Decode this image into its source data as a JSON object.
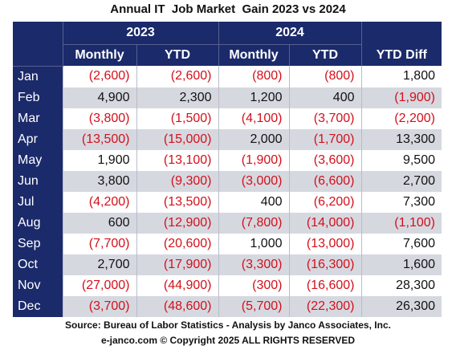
{
  "header": {
    "title": "Annual IT  Job Market  Gain 2023 vs 2024"
  },
  "table": {
    "groups": [
      "2023",
      "2024"
    ],
    "columns": [
      "Monthly",
      "YTD",
      "Monthly",
      "YTD",
      "YTD Diff"
    ],
    "rows": [
      [
        "Jan",
        "(2,600)",
        "(2,600)",
        "(800)",
        "(800)",
        "1,800"
      ],
      [
        "Feb",
        "4,900",
        "2,300",
        "1,200",
        "400",
        "(1,900)"
      ],
      [
        "Mar",
        "(3,800)",
        "(1,500)",
        "(4,100)",
        "(3,700)",
        "(2,200)"
      ],
      [
        "Apr",
        "(13,500)",
        "(15,000)",
        "2,000",
        "(1,700)",
        "13,300"
      ],
      [
        "May",
        "1,900",
        "(13,100)",
        "(1,900)",
        "(3,600)",
        "9,500"
      ],
      [
        "Jun",
        "3,800",
        "(9,300)",
        "(3,000)",
        "(6,600)",
        "2,700"
      ],
      [
        "Jul",
        "(4,200)",
        "(13,500)",
        "400",
        "(6,200)",
        "7,300"
      ],
      [
        "Aug",
        "600",
        "(12,900)",
        "(7,800)",
        "(14,000)",
        "(1,100)"
      ],
      [
        "Sep",
        "(7,700)",
        "(20,600)",
        "1,000",
        "(13,000)",
        "7,600"
      ],
      [
        "Oct",
        "2,700",
        "(17,900)",
        "(3,300)",
        "(16,300)",
        "1,600"
      ],
      [
        "Nov",
        "(27,000)",
        "(44,900)",
        "(300)",
        "(16,600)",
        "28,300"
      ],
      [
        "Dec",
        "(3,700)",
        "(48,600)",
        "(5,700)",
        "(22,300)",
        "26,300"
      ]
    ]
  },
  "footer": {
    "source": "Source: Bureau of Labor Statistics - Analysis by Janco Associates, Inc.",
    "copyright": "e-janco.com © Copyright 2025 ALL RIGHTS RESERVED"
  }
}
